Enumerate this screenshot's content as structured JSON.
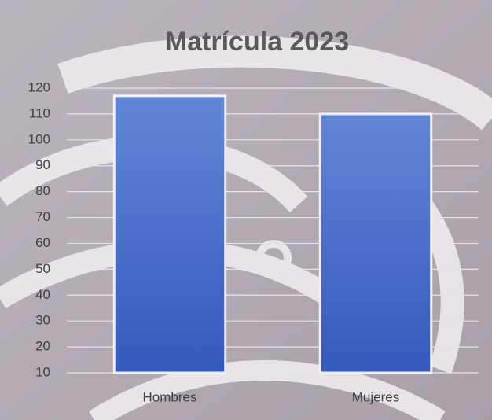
{
  "chart_data": {
    "type": "bar",
    "title": "Matrícula 2023",
    "categories": [
      "Hombres",
      "Mujeres"
    ],
    "values": [
      117,
      110
    ],
    "color": "#4a6fc9",
    "ylim": [
      10,
      120
    ],
    "yticks": [
      10,
      20,
      30,
      40,
      50,
      60,
      70,
      80,
      90,
      100,
      110,
      120
    ],
    "grid": true
  }
}
